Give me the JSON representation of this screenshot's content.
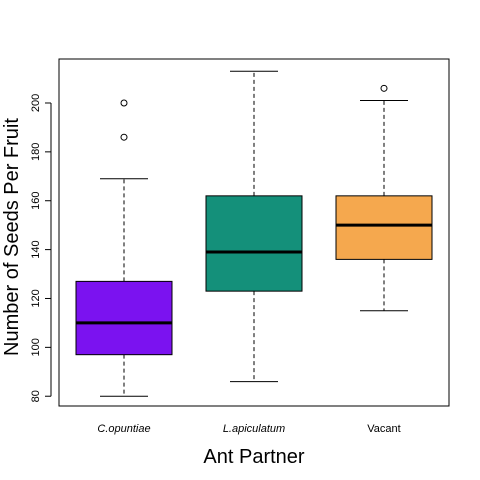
{
  "chart_data": {
    "type": "box",
    "title": "",
    "xlabel": "Ant Partner",
    "ylabel": "Number of Seeds Per Fruit",
    "ylim": [
      76,
      218
    ],
    "yticks": [
      80,
      100,
      120,
      140,
      160,
      180,
      200
    ],
    "grid": false,
    "categories": [
      {
        "label": "C.opuntiae",
        "italic": true
      },
      {
        "label": "L.apiculatum",
        "italic": true
      },
      {
        "label": "Vacant",
        "italic": false
      }
    ],
    "boxes": [
      {
        "name": "C.opuntiae",
        "whisker_low": 80,
        "q1": 97,
        "median": 110,
        "q3": 127,
        "whisker_high": 169,
        "outliers": [
          186,
          200
        ],
        "color": "#7B12F0"
      },
      {
        "name": "L.apiculatum",
        "whisker_low": 86,
        "q1": 123,
        "median": 139,
        "q3": 162,
        "whisker_high": 213,
        "outliers": [],
        "color": "#14907A"
      },
      {
        "name": "Vacant",
        "whisker_low": 115,
        "q1": 136,
        "median": 150,
        "q3": 162,
        "whisker_high": 201,
        "outliers": [
          206
        ],
        "color": "#F5A84E"
      }
    ]
  }
}
